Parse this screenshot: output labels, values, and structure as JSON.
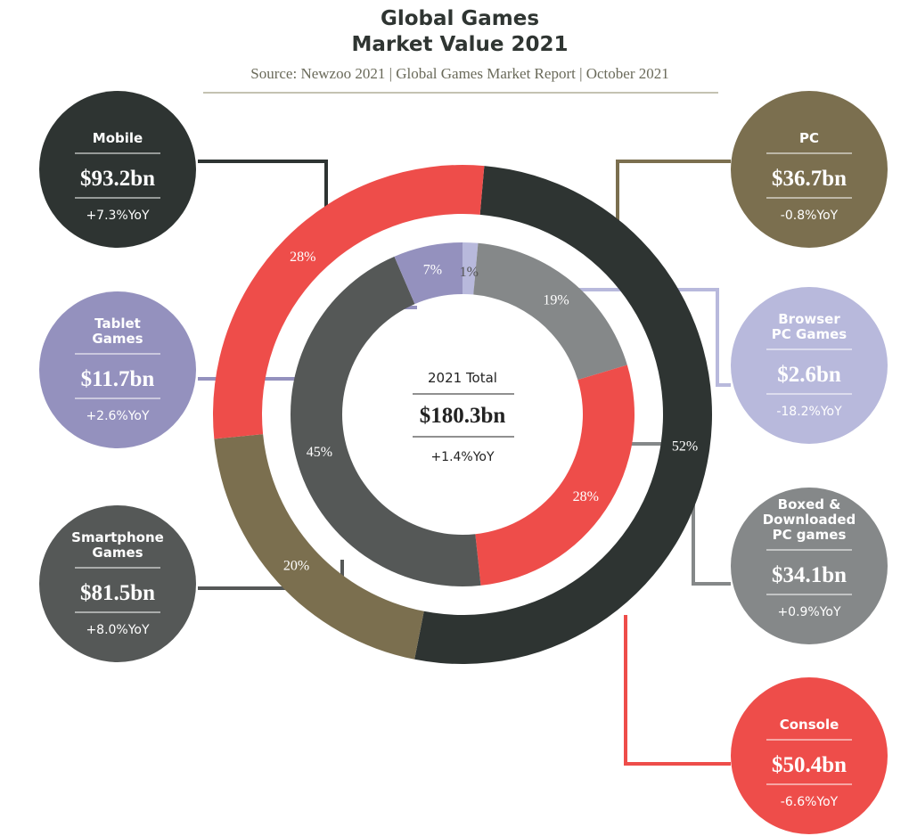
{
  "header": {
    "title_line1": "Global Games",
    "title_line2": "Market Value 2021",
    "source": "Source: Newzoo 2021 | Global Games Market Report | October 2021"
  },
  "center": {
    "label": "2021 Total",
    "value": "$180.3bn",
    "yoy": "+1.4%YoY"
  },
  "colors": {
    "mobile": "#2e3432",
    "pc": "#7b6f4f",
    "console": "#ee4d4a",
    "smartphone": "#555857",
    "tablet": "#9491be",
    "browser": "#b8b9dc",
    "boxed": "#858889"
  },
  "chart_data": {
    "type": "pie",
    "title": "Global Games Market Value 2021",
    "total": 180.3,
    "unit": "$bn",
    "outer_ring": [
      {
        "key": "mobile",
        "name": "Mobile",
        "value": 93.2,
        "display": "$93.2bn",
        "share_label": "52%",
        "yoy": "+7.3%YoY"
      },
      {
        "key": "pc",
        "name": "PC",
        "value": 36.7,
        "display": "$36.7bn",
        "share_label": "20%",
        "yoy": "-0.8%YoY"
      },
      {
        "key": "console",
        "name": "Console",
        "value": 50.4,
        "display": "$50.4bn",
        "share_label": "28%",
        "yoy": "-6.6%YoY"
      }
    ],
    "inner_ring": [
      {
        "key": "browser",
        "name": "Browser PC Games",
        "value": 2.6,
        "display": "$2.6bn",
        "share_label": "1%",
        "yoy": "-18.2%YoY"
      },
      {
        "key": "boxed",
        "name": "Boxed & Downloaded PC games",
        "value": 34.1,
        "display": "$34.1bn",
        "share_label": "19%",
        "yoy": "+0.9%YoY"
      },
      {
        "key": "console",
        "name": "Console",
        "value": 50.4,
        "display": "$50.4bn",
        "share_label": "28%",
        "yoy": "-6.6%YoY"
      },
      {
        "key": "smartphone",
        "name": "Smartphone Games",
        "value": 81.5,
        "display": "$81.5bn",
        "share_label": "45%",
        "yoy": "+8.0%YoY"
      },
      {
        "key": "tablet",
        "name": "Tablet Games",
        "value": 11.7,
        "display": "$11.7bn",
        "share_label": "7%",
        "yoy": "+2.6%YoY"
      }
    ]
  },
  "bubbles": [
    {
      "key": "mobile",
      "name_lines": [
        "Mobile"
      ],
      "value": "$93.2bn",
      "yoy": "+7.3%YoY"
    },
    {
      "key": "tablet",
      "name_lines": [
        "Tablet",
        "Games"
      ],
      "value": "$11.7bn",
      "yoy": "+2.6%YoY"
    },
    {
      "key": "smartphone",
      "name_lines": [
        "Smartphone",
        "Games"
      ],
      "value": "$81.5bn",
      "yoy": "+8.0%YoY"
    },
    {
      "key": "pc",
      "name_lines": [
        "PC"
      ],
      "value": "$36.7bn",
      "yoy": "-0.8%YoY"
    },
    {
      "key": "browser",
      "name_lines": [
        "Browser",
        "PC Games"
      ],
      "value": "$2.6bn",
      "yoy": "-18.2%YoY"
    },
    {
      "key": "boxed",
      "name_lines": [
        "Boxed &",
        "Downloaded",
        "PC games"
      ],
      "value": "$34.1bn",
      "yoy": "+0.9%YoY"
    },
    {
      "key": "console",
      "name_lines": [
        "Console"
      ],
      "value": "$50.4bn",
      "yoy": "-6.6%YoY"
    }
  ]
}
